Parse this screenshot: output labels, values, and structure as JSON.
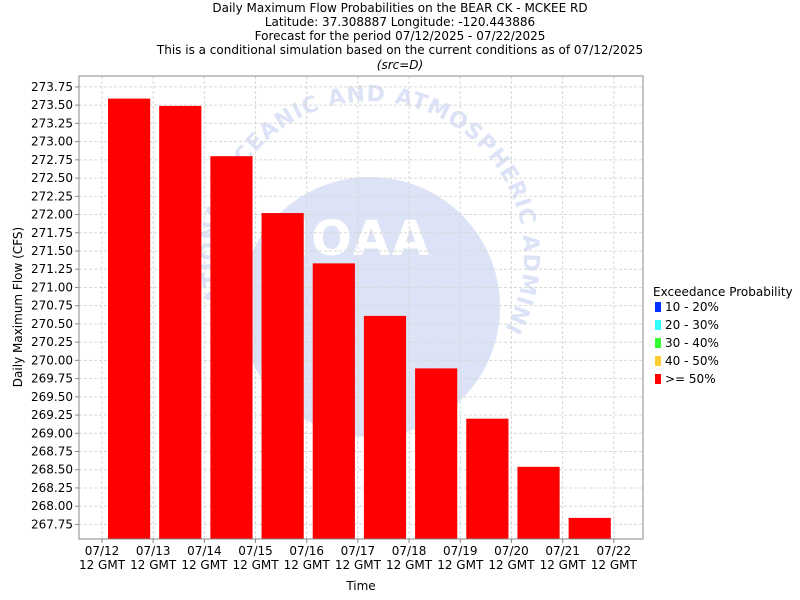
{
  "chart_data": {
    "type": "bar",
    "title_lines": [
      "Daily Maximum Flow Probabilities on the BEAR CK - MCKEE RD",
      "Latitude: 37.308887 Longitude: -120.443886",
      "Forecast for the period 07/12/2025 - 07/22/2025",
      "This is a conditional simulation based on the current conditions as of 07/12/2025"
    ],
    "subtitle": "(src=D)",
    "xlabel": "Time",
    "ylabel": "Daily Maximum Flow (CFS)",
    "x_tick_labels": [
      {
        "date": "07/12",
        "time": "12 GMT"
      },
      {
        "date": "07/13",
        "time": "12 GMT"
      },
      {
        "date": "07/14",
        "time": "12 GMT"
      },
      {
        "date": "07/15",
        "time": "12 GMT"
      },
      {
        "date": "07/16",
        "time": "12 GMT"
      },
      {
        "date": "07/17",
        "time": "12 GMT"
      },
      {
        "date": "07/18",
        "time": "12 GMT"
      },
      {
        "date": "07/19",
        "time": "12 GMT"
      },
      {
        "date": "07/20",
        "time": "12 GMT"
      },
      {
        "date": "07/21",
        "time": "12 GMT"
      },
      {
        "date": "07/22",
        "time": "12 GMT"
      }
    ],
    "ylim": [
      267.55,
      273.9
    ],
    "y_ticks": [
      "267.75",
      "268.00",
      "268.25",
      "268.50",
      "268.75",
      "269.00",
      "269.25",
      "269.50",
      "269.75",
      "270.00",
      "270.25",
      "270.50",
      "270.75",
      "271.00",
      "271.25",
      "271.50",
      "271.75",
      "272.00",
      "272.25",
      "272.50",
      "272.75",
      "273.00",
      "273.25",
      "273.50",
      "273.75"
    ],
    "grid": true,
    "series": [
      {
        "name": ">= 50%",
        "color": "#ff0000",
        "bars": [
          {
            "start": "07/12 12 GMT",
            "end": "07/13 12 GMT",
            "value": 273.59
          },
          {
            "start": "07/13 12 GMT",
            "end": "07/14 12 GMT",
            "value": 273.49
          },
          {
            "start": "07/14 12 GMT",
            "end": "07/15 12 GMT",
            "value": 272.8
          },
          {
            "start": "07/15 12 GMT",
            "end": "07/16 12 GMT",
            "value": 272.02
          },
          {
            "start": "07/16 12 GMT",
            "end": "07/17 12 GMT",
            "value": 271.33
          },
          {
            "start": "07/17 12 GMT",
            "end": "07/18 12 GMT",
            "value": 270.61
          },
          {
            "start": "07/18 12 GMT",
            "end": "07/19 12 GMT",
            "value": 269.89
          },
          {
            "start": "07/19 12 GMT",
            "end": "07/20 12 GMT",
            "value": 269.2
          },
          {
            "start": "07/20 12 GMT",
            "end": "07/21 12 GMT",
            "value": 268.54
          },
          {
            "start": "07/21 12 GMT",
            "end": "07/22 12 GMT",
            "value": 267.84
          }
        ]
      }
    ],
    "legend": {
      "title": "Exceedance Probability",
      "placement": "right",
      "items": [
        {
          "label": "10 - 20%",
          "color": "#0033ff"
        },
        {
          "label": "20 - 30%",
          "color": "#33ffff"
        },
        {
          "label": "30 - 40%",
          "color": "#33ff33"
        },
        {
          "label": "40 - 50%",
          "color": "#ffcc33"
        },
        {
          "label": ">= 50%",
          "color": "#ff0000"
        }
      ]
    },
    "watermark": {
      "text": "NATIONAL OCEANIC AND ATMOSPHERIC ADMINISTRATION",
      "center_text": "NOAA",
      "color": "#dde3f7"
    }
  }
}
